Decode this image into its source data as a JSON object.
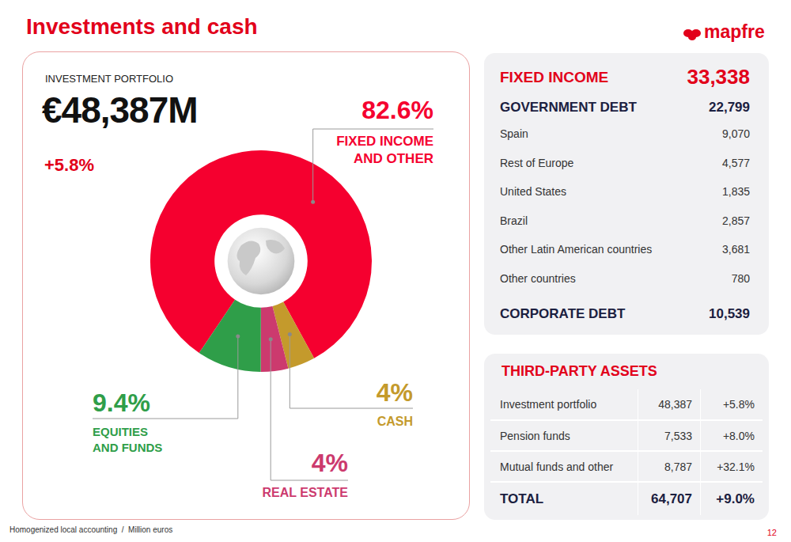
{
  "header": {
    "title": "Investments and cash",
    "logo": "mapfre"
  },
  "chart_data": {
    "type": "pie",
    "title": "INVESTMENT PORTFOLIO",
    "total_label": "€48,387M",
    "change_label": "+5.8%",
    "categories": [
      "FIXED INCOME AND OTHER",
      "CASH",
      "REAL ESTATE",
      "EQUITIES AND FUNDS"
    ],
    "values": [
      82.6,
      4,
      4,
      9.4
    ],
    "value_labels": [
      "82.6%",
      "4%",
      "4%",
      "9.4%"
    ],
    "colors": [
      "#f5002f",
      "#c49a2c",
      "#cc3a6e",
      "#2f9e49"
    ],
    "data_labels": true
  },
  "fixed_income": {
    "title": "FIXED INCOME",
    "total": "33,338",
    "government_debt": {
      "label": "GOVERNMENT DEBT",
      "value": "22,799",
      "rows": [
        [
          "Spain",
          "9,070"
        ],
        [
          "Rest of Europe",
          "4,577"
        ],
        [
          "United States",
          "1,835"
        ],
        [
          "Brazil",
          "2,857"
        ],
        [
          "Other Latin American countries",
          "3,681"
        ],
        [
          "Other countries",
          "780"
        ]
      ]
    },
    "corporate_debt": {
      "label": "CORPORATE DEBT",
      "value": "10,539"
    }
  },
  "third_party_assets": {
    "title": "THIRD-PARTY ASSETS",
    "rows": [
      [
        "Investment portfolio",
        "48,387",
        "+5.8%"
      ],
      [
        "Pension funds",
        "7,533",
        "+8.0%"
      ],
      [
        "Mutual funds and other",
        "8,787",
        "+32.1%"
      ]
    ],
    "total": [
      "TOTAL",
      "64,707",
      "+9.0%"
    ]
  },
  "footer": "Homogenized local accounting  /  Million euros",
  "page_number": "12"
}
